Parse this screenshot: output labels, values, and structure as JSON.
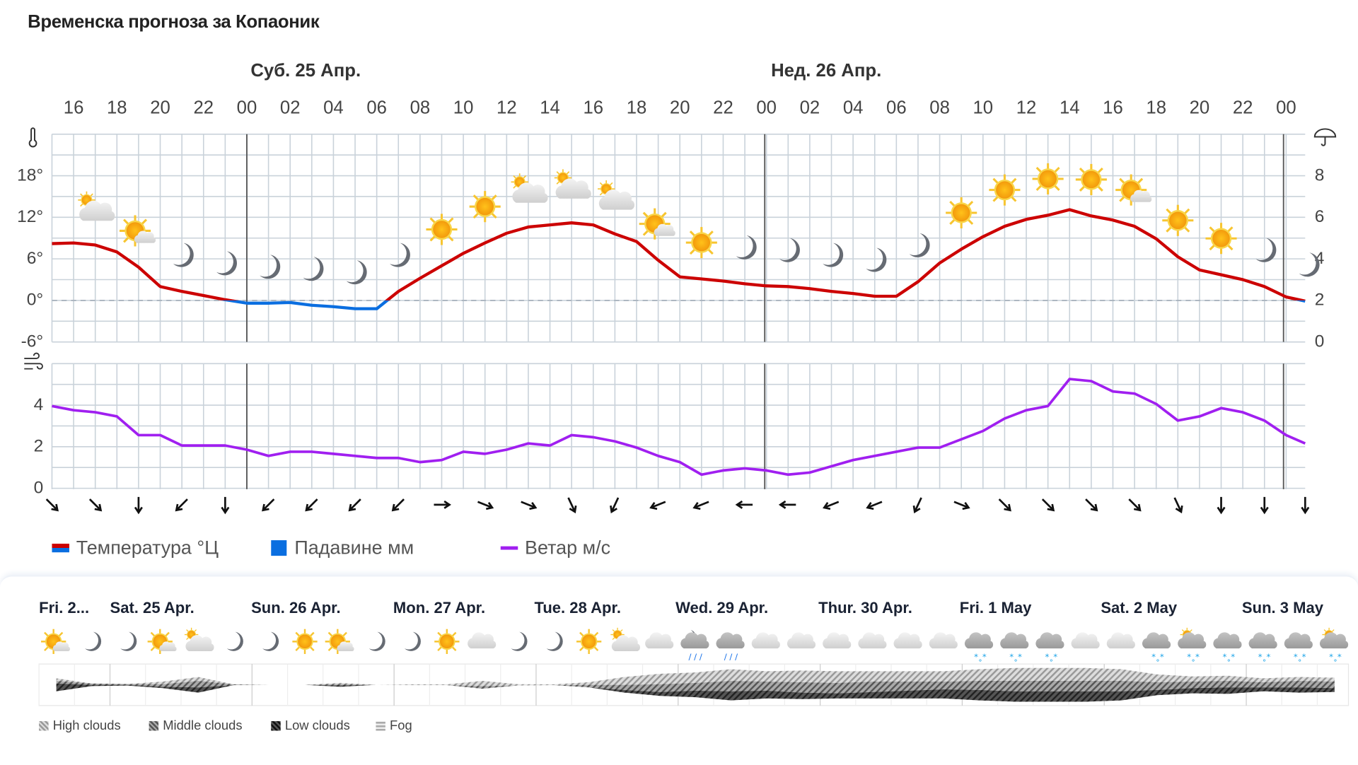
{
  "title": "Временска прогноза за Копаоник",
  "days_top": [
    {
      "label": "Суб. 25 Апр."
    },
    {
      "label": "Нед. 26 Апр."
    }
  ],
  "hours": [
    "16",
    "18",
    "20",
    "22",
    "00",
    "02",
    "04",
    "06",
    "08",
    "10",
    "12",
    "14",
    "16",
    "18",
    "20",
    "22",
    "00",
    "02",
    "04",
    "06",
    "08",
    "10",
    "12",
    "14",
    "16",
    "18",
    "20",
    "22",
    "00"
  ],
  "temp_axis": [
    "18°",
    "12°",
    "6°",
    "0°",
    "-6°"
  ],
  "precip_axis": [
    "8",
    "6",
    "4",
    "2",
    "0"
  ],
  "wind_axis": [
    "4",
    "2",
    "0"
  ],
  "colors": {
    "temp_warm": "#cc0000",
    "temp_cold": "#0a6ee0",
    "wind": "#a01ff0",
    "grid": "#c9d2da",
    "midnight": "#555"
  },
  "chart_data": [
    {
      "type": "line",
      "title": "",
      "start_hour": "15:00",
      "temp_ylim": [
        -6,
        24
      ],
      "precip_ylim": [
        0,
        8
      ],
      "series": [
        {
          "name": "Температура °Ц",
          "values": [
            8.2,
            8.3,
            8,
            7,
            4.8,
            2,
            1.3,
            0.7,
            0.1,
            -0.4,
            -0.4,
            -0.3,
            -0.7,
            -0.9,
            -1.2,
            -1.2,
            1.3,
            3.2,
            5,
            6.8,
            8.3,
            9.7,
            10.6,
            10.9,
            11.2,
            10.9,
            9.6,
            8.5,
            5.8,
            3.4,
            3.1,
            2.8,
            2.4,
            2.1,
            2,
            1.7,
            1.3,
            1,
            0.6,
            0.6,
            2.7,
            5.4,
            7.4,
            9.2,
            10.7,
            11.7,
            12.3,
            13.1,
            12.2,
            11.6,
            10.7,
            8.9,
            6.3,
            4.4,
            3.7,
            3,
            2,
            0.5,
            -0.1
          ]
        },
        {
          "name": "Падавине мм",
          "values": []
        }
      ],
      "icons": [
        "partly-cloudy",
        "sun-small-cloud",
        "moon",
        "moon",
        "moon",
        "moon",
        "moon",
        "moon",
        "sun",
        "sun",
        "partly-cloudy",
        "partly-cloudy",
        "partly-cloudy",
        "sun-small-cloud",
        "sun",
        "moon",
        "moon",
        "moon",
        "moon",
        "moon",
        "sun",
        "sun",
        "sun",
        "sun",
        "sun-small-cloud",
        "sun",
        "sun",
        "moon",
        "moon"
      ]
    },
    {
      "type": "line",
      "title": "",
      "ylim": [
        0,
        6
      ],
      "series": [
        {
          "name": "Ветар м/с",
          "values": [
            4,
            3.8,
            3.7,
            3.5,
            2.6,
            2.6,
            2.1,
            2.1,
            2.1,
            1.9,
            1.6,
            1.8,
            1.8,
            1.7,
            1.6,
            1.5,
            1.5,
            1.3,
            1.4,
            1.8,
            1.7,
            1.9,
            2.2,
            2.1,
            2.6,
            2.5,
            2.3,
            2,
            1.6,
            1.3,
            0.7,
            0.9,
            1,
            0.9,
            0.7,
            0.8,
            1.1,
            1.4,
            1.6,
            1.8,
            2,
            2,
            2.4,
            2.8,
            3.4,
            3.8,
            4,
            5.3,
            5.2,
            4.7,
            4.6,
            4.1,
            3.3,
            3.5,
            3.9,
            3.7,
            3.3,
            2.6,
            2.2
          ]
        }
      ],
      "wind_direction_arrows": [
        "SE",
        "SE",
        "S",
        "SW",
        "S",
        "SW",
        "SW",
        "SW",
        "SW",
        "E",
        "ESE",
        "ESE",
        "SSE",
        "SSW",
        "WSW",
        "WSW",
        "W",
        "W",
        "WSW",
        "WSW",
        "SSW",
        "ESE",
        "SE",
        "SE",
        "SE",
        "SE",
        "SSE",
        "S",
        "S",
        "S"
      ]
    }
  ],
  "legend": [
    {
      "label": "Температура °Ц"
    },
    {
      "label": "Падавине мм"
    },
    {
      "label": "Ветар м/с"
    }
  ],
  "week": {
    "days": [
      "Fri. 2...",
      "Sat. 25 Apr.",
      "Sun. 26 Apr.",
      "Mon. 27 Apr.",
      "Tue. 28 Apr.",
      "Wed. 29 Apr.",
      "Thur. 30 Apr.",
      "Fri. 1 May",
      "Sat. 2 May",
      "Sun. 3 May"
    ],
    "icons": [
      "sun-small-cloud",
      "moon",
      "moon",
      "sun-small-cloud",
      "partly-cloudy",
      "moon",
      "moon",
      "sun",
      "sun-small-cloud",
      "moon",
      "moon",
      "sun",
      "cloud",
      "moon",
      "moon",
      "sun",
      "partly-cloudy",
      "cloud",
      "moon-rain",
      "rain",
      "cloud-light",
      "cloud-light",
      "cloud-light",
      "cloud-light",
      "cloud-light",
      "cloud-light",
      "snow",
      "snow",
      "snow",
      "cloud-light",
      "cloud-light",
      "snow",
      "sun-snow",
      "snow",
      "light-snow",
      "light-snow",
      "sun-snow"
    ],
    "clouds_high_mid_low": [
      [
        10,
        10,
        30
      ],
      [
        0,
        5,
        5
      ],
      [
        0,
        3,
        3
      ],
      [
        10,
        10,
        5
      ],
      [
        15,
        25,
        20
      ],
      [
        0,
        3,
        0
      ],
      [
        0,
        0,
        0
      ],
      [
        0,
        0,
        0
      ],
      [
        5,
        5,
        5
      ],
      [
        0,
        0,
        0
      ],
      [
        3,
        0,
        0
      ],
      [
        3,
        0,
        0
      ],
      [
        20,
        10,
        0
      ],
      [
        5,
        0,
        0
      ],
      [
        3,
        0,
        0
      ],
      [
        10,
        10,
        0
      ],
      [
        30,
        20,
        10
      ],
      [
        40,
        30,
        15
      ],
      [
        40,
        30,
        25
      ],
      [
        45,
        40,
        35
      ],
      [
        40,
        35,
        30
      ],
      [
        45,
        40,
        25
      ],
      [
        45,
        40,
        20
      ],
      [
        40,
        40,
        25
      ],
      [
        40,
        35,
        30
      ],
      [
        40,
        30,
        35
      ],
      [
        45,
        35,
        40
      ],
      [
        50,
        40,
        40
      ],
      [
        50,
        40,
        40
      ],
      [
        50,
        40,
        40
      ],
      [
        45,
        40,
        35
      ],
      [
        30,
        30,
        20
      ],
      [
        20,
        25,
        20
      ],
      [
        20,
        25,
        25
      ],
      [
        15,
        20,
        15
      ],
      [
        15,
        25,
        20
      ],
      [
        15,
        25,
        15
      ]
    ],
    "legend": [
      {
        "label": "High clouds"
      },
      {
        "label": "Middle clouds"
      },
      {
        "label": "Low clouds"
      },
      {
        "label": "Fog"
      }
    ]
  }
}
